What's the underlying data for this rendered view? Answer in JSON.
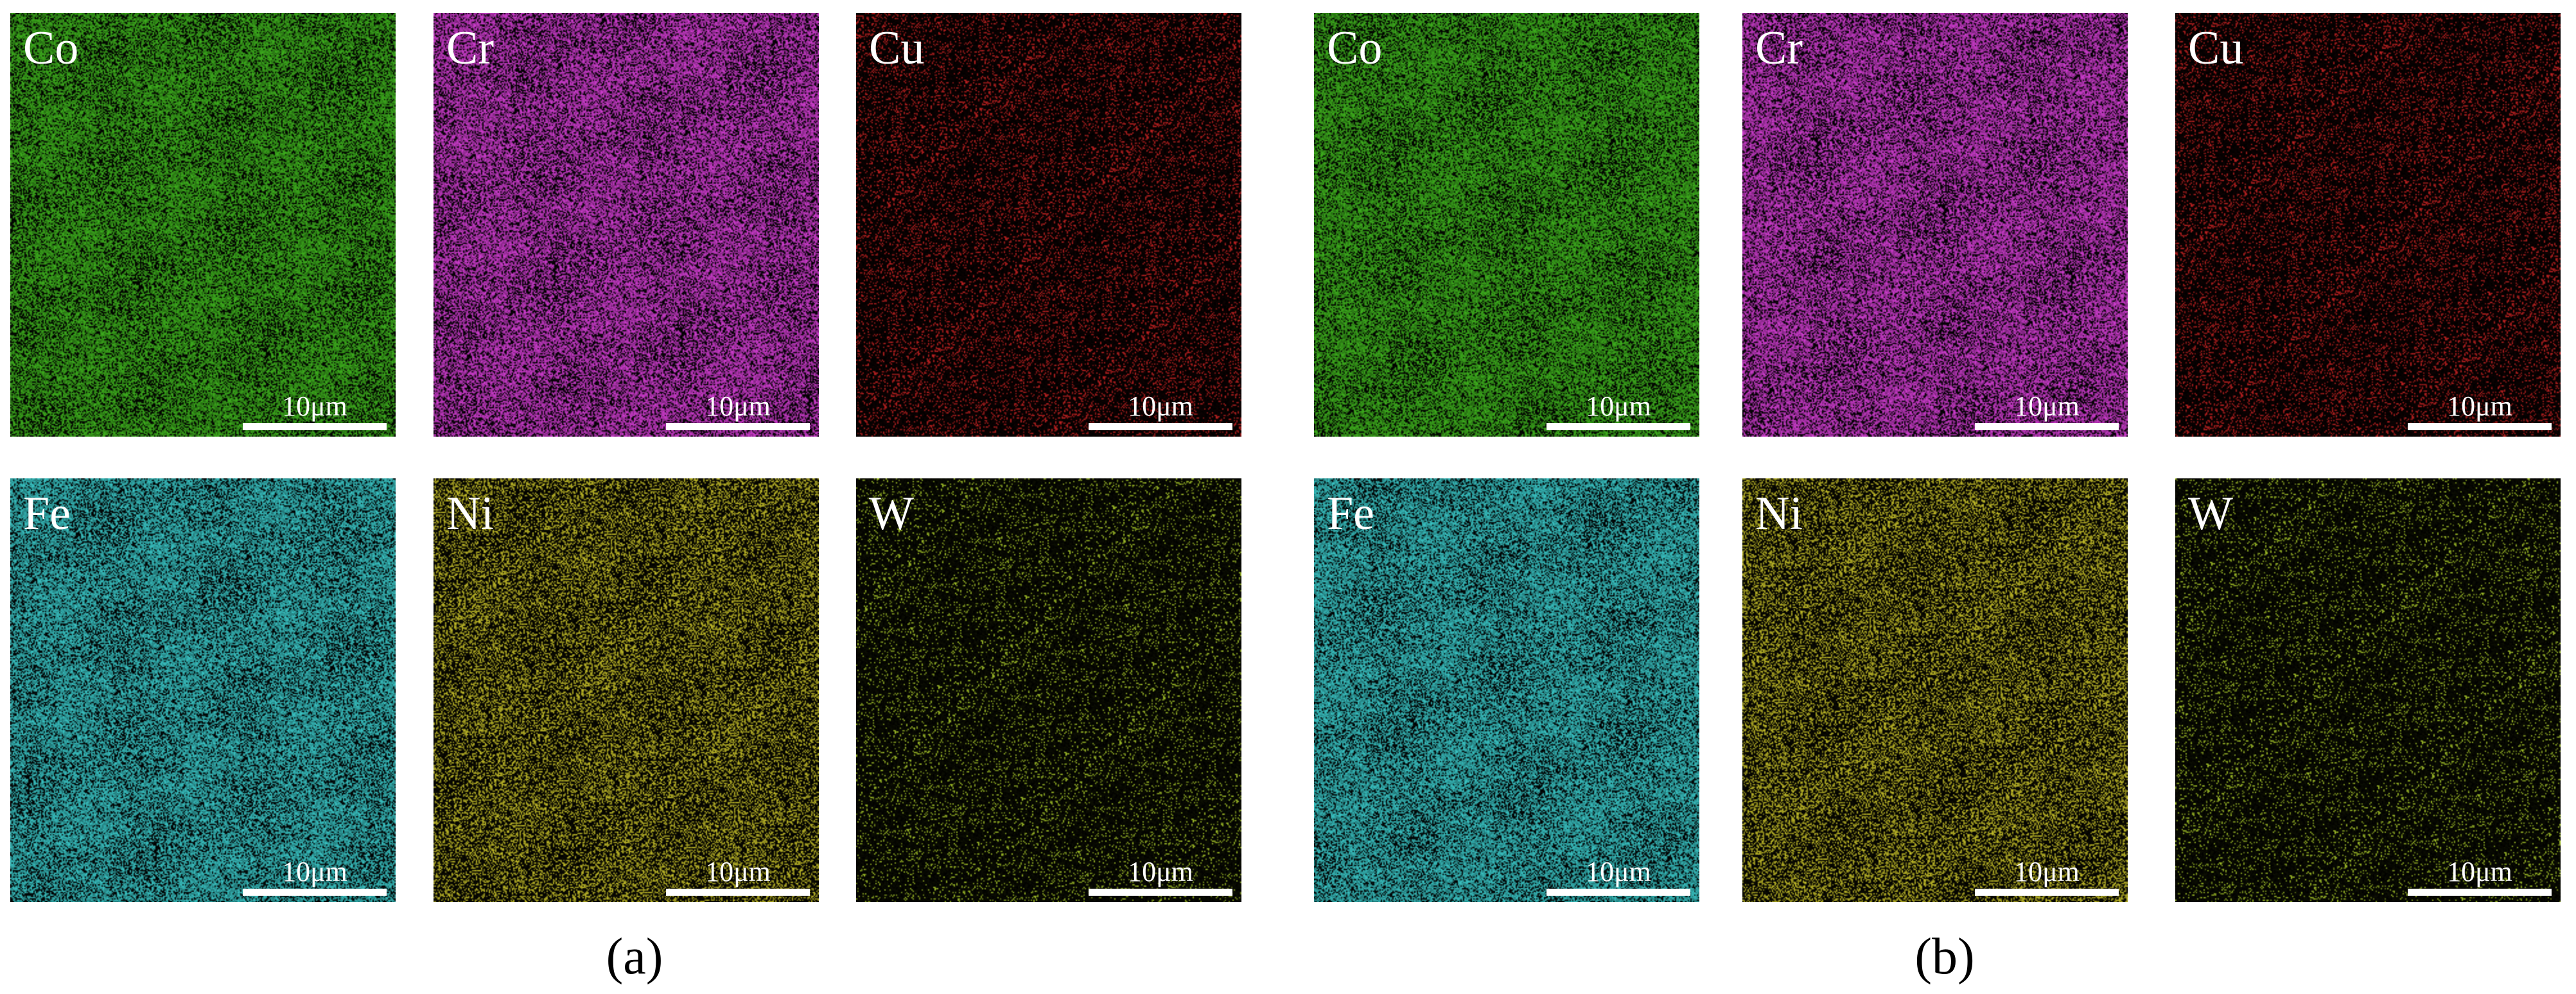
{
  "figure": {
    "labels": {
      "a": "(a)",
      "b": "(b)"
    },
    "scale_bar_text": "10μm",
    "groups": [
      {
        "id": "a",
        "maps": [
          {
            "element": "Co",
            "color": "#3fb21e"
          },
          {
            "element": "Cr",
            "color": "#d23ed2"
          },
          {
            "element": "Cu",
            "color": "#c42222"
          },
          {
            "element": "Fe",
            "color": "#3ac6c6"
          },
          {
            "element": "Ni",
            "color": "#c8c22a"
          },
          {
            "element": "W",
            "color": "#a8c82a"
          }
        ]
      },
      {
        "id": "b",
        "maps": [
          {
            "element": "Co",
            "color": "#3fb21e"
          },
          {
            "element": "Cr",
            "color": "#d23ed2"
          },
          {
            "element": "Cu",
            "color": "#c42222"
          },
          {
            "element": "Fe",
            "color": "#3ac6c6"
          },
          {
            "element": "Ni",
            "color": "#c8c22a"
          },
          {
            "element": "W",
            "color": "#a8c82a"
          }
        ]
      }
    ]
  }
}
